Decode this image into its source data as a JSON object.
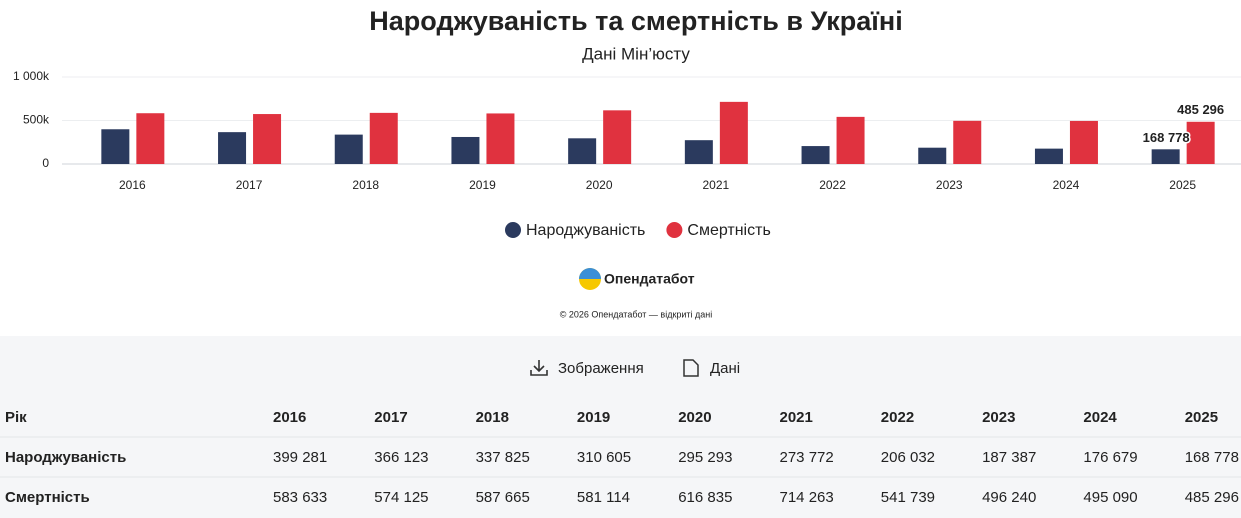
{
  "chart_data": {
    "type": "bar",
    "title": "Народжуваність та смертність в Україні",
    "subtitle": "Дані Мін’юсту",
    "categories": [
      "2016",
      "2017",
      "2018",
      "2019",
      "2020",
      "2021",
      "2022",
      "2023",
      "2024",
      "2025"
    ],
    "series": [
      {
        "name": "Народжуваність",
        "color": "#2b3a5e",
        "values": [
          399281,
          366123,
          337825,
          310605,
          295293,
          273772,
          206032,
          187387,
          176679,
          168778
        ],
        "value_labels": [
          "399 281",
          "366 123",
          "337 825",
          "310 605",
          "295 293",
          "273 772",
          "206 032",
          "187 387",
          "176 679",
          "168 778"
        ]
      },
      {
        "name": "Смертність",
        "color": "#e0323f",
        "values": [
          583633,
          574125,
          587665,
          581114,
          616835,
          714263,
          541739,
          496240,
          495090,
          485296
        ],
        "value_labels": [
          "583 633",
          "574 125",
          "587 665",
          "581 114",
          "616 835",
          "714 263",
          "541 739",
          "496 240",
          "495 090",
          "485 296"
        ]
      }
    ],
    "ylim": [
      0,
      1000000
    ],
    "yticks": [
      0,
      {
        "value": 500000,
        "label": "500k"
      },
      {
        "value": 1000000,
        "label": "1 000k"
      }
    ],
    "grid": true,
    "legend": "bottom"
  },
  "brand": "Опендатабот",
  "footer": "© 2026 Опендатабот — відкриті дані",
  "toolbar": [
    "Зображення",
    "Дані"
  ],
  "table_header": "Рік"
}
